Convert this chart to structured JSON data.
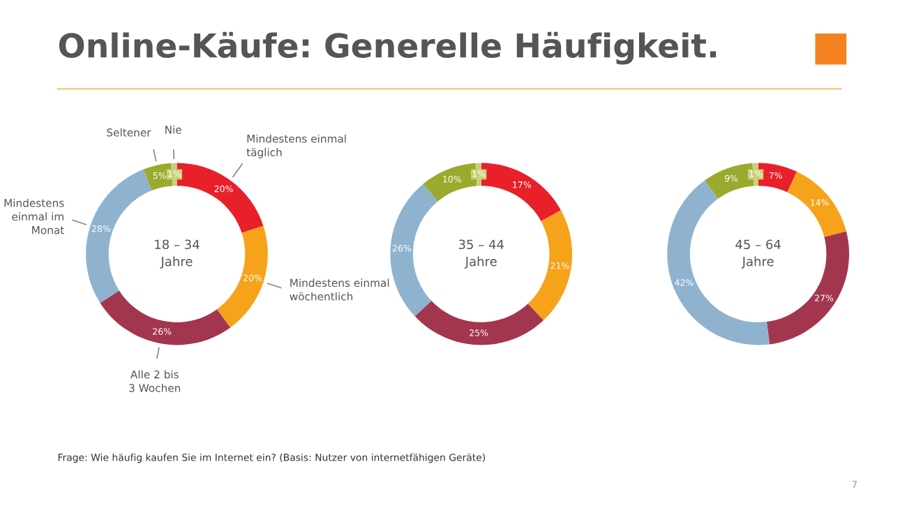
{
  "chart_data": [
    {
      "type": "donut",
      "title": "Online-Käufe: Generelle Häufigkeit.",
      "subtitle": "18 – 34\nJahre",
      "categories": [
        "Mindestens einmal\ntäglich",
        "Mindestens einmal\nwöchentlich",
        "Alle 2 bis\n3 Wochen",
        "Mindestens\neinmal im\nMonat",
        "Seltener",
        "Nie"
      ],
      "values": [
        20,
        20,
        26,
        28,
        5,
        1
      ],
      "value_labels": [
        "20%",
        "20%",
        "26%",
        "28%",
        "5%",
        "1%"
      ],
      "colors": [
        "#e8202a",
        "#f7a21b",
        "#a3364f",
        "#8fb3cf",
        "#9aaa2e",
        "#c9cf7a"
      ],
      "annotations": [
        "Frage: Wie häufig kaufen Sie im Internet ein? (Basis: Nutzer von internetfähigen Geräte)",
        "7"
      ]
    },
    {
      "type": "donut",
      "subtitle": "35 – 44\nJahre",
      "categories": [
        null,
        null,
        null,
        null,
        null,
        null
      ],
      "values": [
        17,
        21,
        25,
        26,
        10,
        1
      ],
      "value_labels": [
        "17%",
        "21%",
        "25%",
        "26%",
        "10%",
        "1%"
      ],
      "colors": [
        "#e8202a",
        "#f7a21b",
        "#a3364f",
        "#8fb3cf",
        "#9aaa2e",
        "#c9cf7a"
      ]
    },
    {
      "type": "donut",
      "subtitle": "45 – 64\nJahre",
      "categories": [
        null,
        null,
        null,
        null,
        null,
        null
      ],
      "values": [
        7,
        14,
        27,
        42,
        9,
        1
      ],
      "value_labels": [
        "7%",
        "14%",
        "27%",
        "42%",
        "9%",
        "1%"
      ],
      "colors": [
        "#e8202a",
        "#f7a21b",
        "#a3364f",
        "#8fb3cf",
        "#9aaa2e",
        "#c9cf7a"
      ]
    }
  ]
}
